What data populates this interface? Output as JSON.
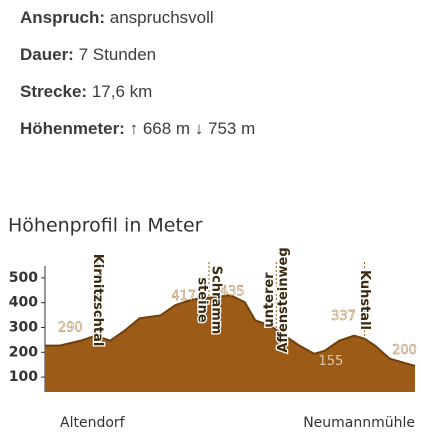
{
  "info": {
    "rows": [
      {
        "label": "Anspruch:",
        "text": "anspruchsvoll"
      },
      {
        "label": "Dauer:",
        "text": "7 Stunden"
      },
      {
        "label": "Strecke:",
        "text": "17,6 km"
      },
      {
        "label": "Höhenmeter:",
        "text": "↑ 668 m ↓ 753 m"
      }
    ]
  },
  "chart_data": {
    "type": "area",
    "title": "Höhenprofil in Meter",
    "x": [
      0,
      0.7,
      1.7,
      2.4,
      3.1,
      3.8,
      4.5,
      5.5,
      6.2,
      6.9,
      7.4,
      8.1,
      8.8,
      9.5,
      10.0,
      10.7,
      11.4,
      12.1,
      12.8,
      13.3,
      14.0,
      14.7,
      15.2,
      15.7,
      16.4,
      17.1,
      17.6
    ],
    "values": [
      227,
      227,
      247,
      267,
      247,
      288,
      337,
      349,
      390,
      410,
      418,
      422,
      431,
      402,
      329,
      308,
      267,
      227,
      194,
      206,
      247,
      267,
      255,
      227,
      174,
      157,
      145
    ],
    "color": "#9c5c17",
    "xlim": [
      0,
      17.6
    ],
    "ylim": [
      40,
      560
    ],
    "yticks": [
      100,
      200,
      300,
      400,
      500
    ],
    "peaks": {
      "x": [
        1.2,
        6.6,
        8.9,
        14.2,
        13.6,
        17.1
      ],
      "values": [
        290,
        417,
        435,
        337,
        155,
        200
      ]
    },
    "places": {
      "x": [
        2.5,
        7.8,
        11.0,
        15.2
      ],
      "lines": [
        [
          "Kirnitzschtal"
        ],
        [
          "Schramm",
          "steine"
        ],
        [
          "unterer",
          "Affensteinweg"
        ],
        [
          "Kuhstall"
        ]
      ]
    },
    "start": "Altendorf",
    "end": "Neumannmühle"
  }
}
